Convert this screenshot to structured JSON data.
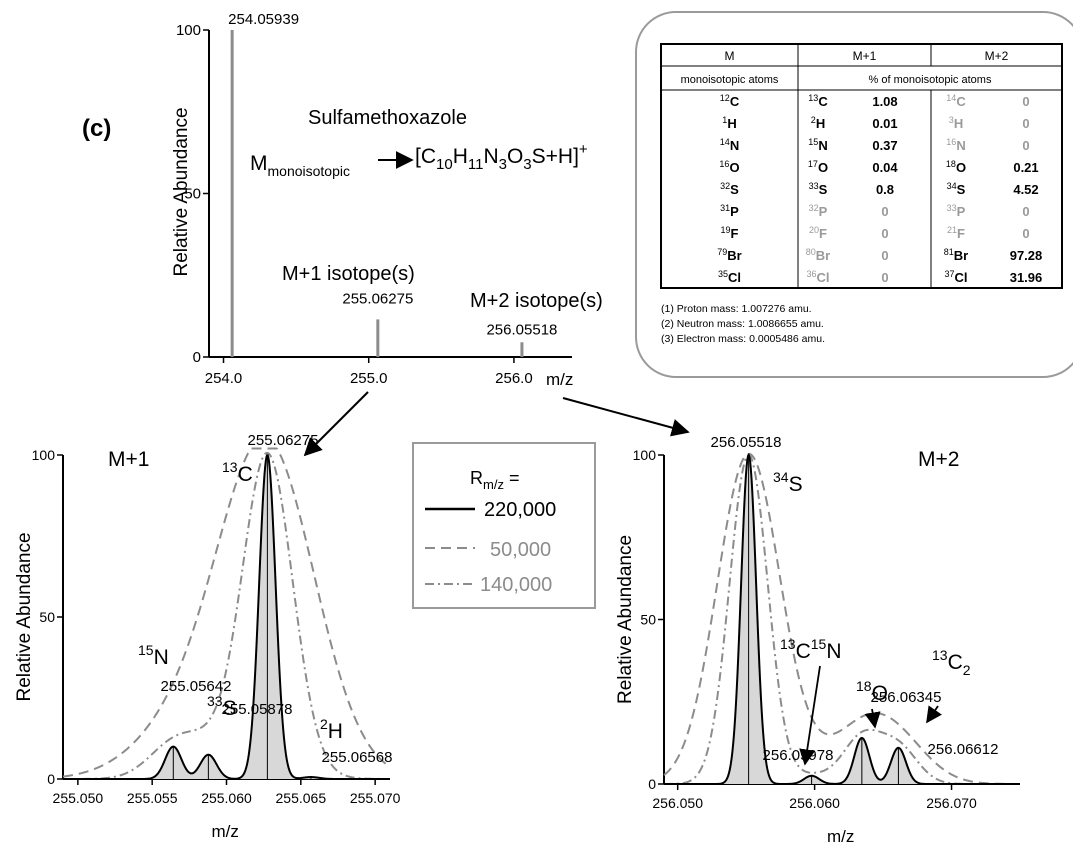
{
  "panel_label": "(c)",
  "top": {
    "compound_name": "Sulfamethoxazole",
    "m_label": "M",
    "m_sub": "monoisotopic",
    "formula_parts": [
      {
        "t": "[C",
        "sub": false
      },
      {
        "t": "10",
        "sub": true
      },
      {
        "t": "H",
        "sub": false
      },
      {
        "t": "11",
        "sub": true
      },
      {
        "t": "N",
        "sub": false
      },
      {
        "t": "3",
        "sub": true
      },
      {
        "t": "O",
        "sub": false
      },
      {
        "t": "3",
        "sub": true
      },
      {
        "t": "S+H]",
        "sub": false
      },
      {
        "t": "+",
        "sup": true
      }
    ],
    "m1_isotope_label": "M+1 isotope(s)",
    "m2_isotope_label": "M+2 isotope(s)"
  },
  "table": {
    "group_headers": [
      "M",
      "M+1",
      "M+2"
    ],
    "sub_headers": [
      "monoisotopic atoms",
      "% of monoisotopic atoms"
    ],
    "rows": [
      {
        "m": [
          "12",
          "C"
        ],
        "m1": [
          "13",
          "C"
        ],
        "v1": "1.08",
        "m1_gray": false,
        "m2": [
          "14",
          "C"
        ],
        "v2": "0",
        "m2_gray": true
      },
      {
        "m": [
          "1",
          "H"
        ],
        "m1": [
          "2",
          "H"
        ],
        "v1": "0.01",
        "m1_gray": false,
        "m2": [
          "3",
          "H"
        ],
        "v2": "0",
        "m2_gray": true
      },
      {
        "m": [
          "14",
          "N"
        ],
        "m1": [
          "15",
          "N"
        ],
        "v1": "0.37",
        "m1_gray": false,
        "m2": [
          "16",
          "N"
        ],
        "v2": "0",
        "m2_gray": true
      },
      {
        "m": [
          "16",
          "O"
        ],
        "m1": [
          "17",
          "O"
        ],
        "v1": "0.04",
        "m1_gray": false,
        "m2": [
          "18",
          "O"
        ],
        "v2": "0.21",
        "m2_gray": false
      },
      {
        "m": [
          "32",
          "S"
        ],
        "m1": [
          "33",
          "S"
        ],
        "v1": "0.8",
        "m1_gray": false,
        "m2": [
          "34",
          "S"
        ],
        "v2": "4.52",
        "m2_gray": false
      },
      {
        "m": [
          "31",
          "P"
        ],
        "m1": [
          "32",
          "P"
        ],
        "v1": "0",
        "m1_gray": true,
        "m2": [
          "33",
          "P"
        ],
        "v2": "0",
        "m2_gray": true
      },
      {
        "m": [
          "19",
          "F"
        ],
        "m1": [
          "20",
          "F"
        ],
        "v1": "0",
        "m1_gray": true,
        "m2": [
          "21",
          "F"
        ],
        "v2": "0",
        "m2_gray": true
      },
      {
        "m": [
          "79",
          "Br"
        ],
        "m1": [
          "80",
          "Br"
        ],
        "v1": "0",
        "m1_gray": true,
        "m2": [
          "81",
          "Br"
        ],
        "v2": "97.28",
        "m2_gray": false
      },
      {
        "m": [
          "35",
          "Cl"
        ],
        "m1": [
          "36",
          "Cl"
        ],
        "v1": "0",
        "m1_gray": true,
        "m2": [
          "37",
          "Cl"
        ],
        "v2": "31.96",
        "m2_gray": false
      }
    ],
    "notes": [
      "(1) Proton mass: 1.007276 amu.",
      "(2) Neutron mass: 1.0086655 amu.",
      "(3) Electron mass: 0.0005486 amu."
    ]
  },
  "legend": {
    "title_main": "R",
    "title_sub": "m/z",
    "title_suffix": "=",
    "entries": [
      "220,000",
      "50,000",
      "140,000"
    ]
  },
  "colors": {
    "gray": "#8c8c8c",
    "fill": "#d8d8d8",
    "black": "#000000"
  },
  "chart_data": [
    {
      "id": "top",
      "type": "bar",
      "xlabel": "m/z",
      "ylabel": "Relative   Abundance",
      "xlim": [
        253.9,
        256.4
      ],
      "ylim": [
        0,
        100
      ],
      "xticks": [
        "254.0",
        "255.0",
        "256.0"
      ],
      "xtick_values": [
        254.0,
        255.0,
        256.0
      ],
      "yticks": [
        "0",
        "50",
        "100"
      ],
      "ytick_values": [
        0,
        50,
        100
      ],
      "peaks": [
        {
          "x": 254.05939,
          "y": 100,
          "label": "254.05939"
        },
        {
          "x": 255.06275,
          "y": 11.5,
          "label": "255.06275"
        },
        {
          "x": 256.05518,
          "y": 4.5,
          "label": "256.05518"
        }
      ]
    },
    {
      "id": "m1",
      "type": "line",
      "title": "M+1",
      "xlabel": "m/z",
      "ylabel": "Relative   Abundance",
      "xlim": [
        255.049,
        255.071
      ],
      "ylim": [
        0,
        100
      ],
      "xticks": [
        "255.050",
        "255.055",
        "255.060",
        "255.065",
        "255.070"
      ],
      "xtick_values": [
        255.05,
        255.055,
        255.06,
        255.065,
        255.07
      ],
      "yticks": [
        "0",
        "50",
        "100"
      ],
      "ytick_values": [
        0,
        50,
        100
      ],
      "peaks": [
        {
          "x": 255.05642,
          "y": 10,
          "label": "255.05642",
          "isotope": "15N"
        },
        {
          "x": 255.05878,
          "y": 7.5,
          "label": "255.05878",
          "isotope": "33S"
        },
        {
          "x": 255.06275,
          "y": 100,
          "label": "255.06275",
          "isotope": "13C"
        },
        {
          "x": 255.06568,
          "y": 0.6,
          "label": "255.06568",
          "isotope": "2H"
        }
      ],
      "annotations": [
        {
          "sup": "13",
          "el": "C"
        },
        {
          "sup": "15",
          "el": "N"
        },
        {
          "sup": "33",
          "el": "S"
        },
        {
          "sup": "2",
          "el": "H"
        }
      ],
      "series": [
        {
          "name": "220,000",
          "style": "solid"
        },
        {
          "name": "50,000",
          "style": "dashed"
        },
        {
          "name": "140,000",
          "style": "dashdot"
        }
      ]
    },
    {
      "id": "m2",
      "type": "line",
      "title": "M+2",
      "xlabel": "m/z",
      "ylabel": "Relative   Abundance",
      "xlim": [
        256.049,
        256.075
      ],
      "ylim": [
        0,
        100
      ],
      "xticks": [
        "256.050",
        "256.060",
        "256.070"
      ],
      "xtick_values": [
        256.05,
        256.06,
        256.07
      ],
      "yticks": [
        "0",
        "50",
        "100"
      ],
      "ytick_values": [
        0,
        50,
        100
      ],
      "peaks": [
        {
          "x": 256.05518,
          "y": 100,
          "label": "256.05518",
          "isotope": "34S"
        },
        {
          "x": 256.05978,
          "y": 2.5,
          "label": "256.05978",
          "isotope": "13C15N"
        },
        {
          "x": 256.06345,
          "y": 14,
          "label": "256.06345",
          "isotope": "18O"
        },
        {
          "x": 256.06612,
          "y": 11,
          "label": "256.06612",
          "isotope": "13C2"
        }
      ],
      "annotations": [
        {
          "sup": "34",
          "el": "S"
        },
        {
          "sup": "13",
          "el": "C",
          "sup2": "15",
          "el2": "N"
        },
        {
          "sup": "18",
          "el": "O"
        },
        {
          "sup": "13",
          "el": "C",
          "sub": "2"
        }
      ],
      "series": [
        {
          "name": "220,000",
          "style": "solid"
        },
        {
          "name": "50,000",
          "style": "dashed"
        },
        {
          "name": "140,000",
          "style": "dashdot"
        }
      ]
    }
  ]
}
